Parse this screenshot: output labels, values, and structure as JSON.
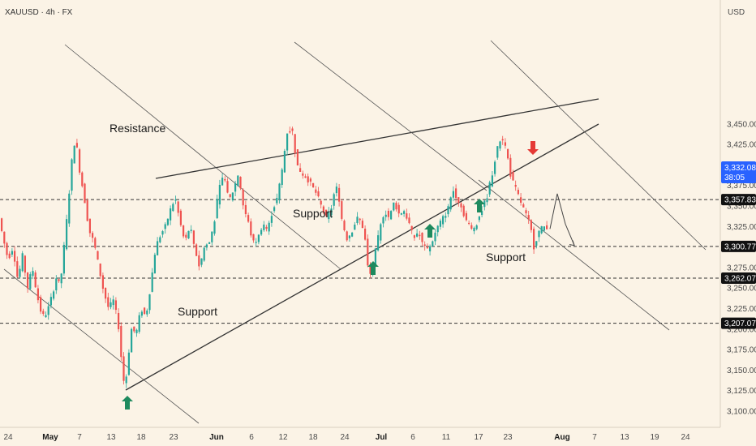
{
  "symbol_header": "XAUUSD · 4h · FX",
  "currency_label": "USD",
  "price_tag": {
    "price": "3,332.08",
    "countdown": "38:05",
    "color": "#2962ff"
  },
  "level_tags": [
    "3,357.83",
    "3,300.77",
    "3,262.07",
    "3,207.07"
  ],
  "colors": {
    "up": "#26a69a",
    "down": "#ef5350",
    "arrow_up": "#1e8a5e",
    "arrow_down": "#e53935",
    "line": "#333333"
  },
  "chart_data": {
    "type": "candlestick",
    "symbol": "XAUUSD",
    "timeframe": "4h",
    "y_axis": {
      "ticks": [
        "3,100.00",
        "3,125.00",
        "3,150.00",
        "3,175.00",
        "3,200.00",
        "3,225.00",
        "3,250.00",
        "3,275.00",
        "3,300.00",
        "3,325.00",
        "3,350.00",
        "3,375.00",
        "3,400.00",
        "3,425.00",
        "3,450.00"
      ],
      "range": [
        3088,
        3475
      ]
    },
    "x_axis": {
      "ticks": [
        {
          "label": "24",
          "bold": false
        },
        {
          "label": "May",
          "bold": true
        },
        {
          "label": "7",
          "bold": false
        },
        {
          "label": "13",
          "bold": false
        },
        {
          "label": "18",
          "bold": false
        },
        {
          "label": "23",
          "bold": false
        },
        {
          "label": "Jun",
          "bold": true
        },
        {
          "label": "6",
          "bold": false
        },
        {
          "label": "12",
          "bold": false
        },
        {
          "label": "18",
          "bold": false
        },
        {
          "label": "24",
          "bold": false
        },
        {
          "label": "Jul",
          "bold": true
        },
        {
          "label": "6",
          "bold": false
        },
        {
          "label": "11",
          "bold": false
        },
        {
          "label": "17",
          "bold": false
        },
        {
          "label": "23",
          "bold": false
        },
        {
          "label": "Aug",
          "bold": true
        },
        {
          "label": "7",
          "bold": false
        },
        {
          "label": "13",
          "bold": false
        },
        {
          "label": "19",
          "bold": false
        },
        {
          "label": "24",
          "bold": false
        }
      ]
    },
    "horizontal_levels": [
      3357.83,
      3300.77,
      3262.07,
      3207.07
    ],
    "annotations": [
      "Resistance",
      "Support",
      "Support",
      "Support"
    ],
    "price_path": [
      [
        0,
        3340
      ],
      [
        6,
        3310
      ],
      [
        12,
        3285
      ],
      [
        18,
        3300
      ],
      [
        24,
        3260
      ],
      [
        30,
        3290
      ],
      [
        36,
        3250
      ],
      [
        42,
        3275
      ],
      [
        48,
        3240
      ],
      [
        54,
        3215
      ],
      [
        60,
        3220
      ],
      [
        66,
        3240
      ],
      [
        72,
        3265
      ],
      [
        76,
        3250
      ],
      [
        80,
        3290
      ],
      [
        86,
        3350
      ],
      [
        90,
        3400
      ],
      [
        95,
        3435
      ],
      [
        100,
        3395
      ],
      [
        106,
        3360
      ],
      [
        112,
        3320
      ],
      [
        118,
        3305
      ],
      [
        124,
        3275
      ],
      [
        130,
        3245
      ],
      [
        136,
        3225
      ],
      [
        142,
        3235
      ],
      [
        148,
        3205
      ],
      [
        152,
        3160
      ],
      [
        156,
        3125
      ],
      [
        160,
        3165
      ],
      [
        164,
        3200
      ],
      [
        170,
        3195
      ],
      [
        176,
        3225
      ],
      [
        182,
        3215
      ],
      [
        188,
        3255
      ],
      [
        194,
        3300
      ],
      [
        200,
        3315
      ],
      [
        206,
        3325
      ],
      [
        212,
        3345
      ],
      [
        218,
        3360
      ],
      [
        224,
        3330
      ],
      [
        230,
        3305
      ],
      [
        236,
        3325
      ],
      [
        242,
        3300
      ],
      [
        248,
        3275
      ],
      [
        254,
        3300
      ],
      [
        260,
        3305
      ],
      [
        266,
        3330
      ],
      [
        272,
        3370
      ],
      [
        278,
        3390
      ],
      [
        284,
        3355
      ],
      [
        290,
        3370
      ],
      [
        296,
        3390
      ],
      [
        302,
        3350
      ],
      [
        308,
        3330
      ],
      [
        314,
        3305
      ],
      [
        320,
        3310
      ],
      [
        326,
        3330
      ],
      [
        332,
        3320
      ],
      [
        338,
        3345
      ],
      [
        344,
        3360
      ],
      [
        350,
        3395
      ],
      [
        356,
        3440
      ],
      [
        362,
        3445
      ],
      [
        368,
        3400
      ],
      [
        374,
        3390
      ],
      [
        380,
        3385
      ],
      [
        386,
        3375
      ],
      [
        392,
        3365
      ],
      [
        398,
        3350
      ],
      [
        404,
        3335
      ],
      [
        410,
        3345
      ],
      [
        416,
        3375
      ],
      [
        420,
        3360
      ],
      [
        424,
        3330
      ],
      [
        430,
        3310
      ],
      [
        436,
        3320
      ],
      [
        442,
        3335
      ],
      [
        448,
        3330
      ],
      [
        452,
        3310
      ],
      [
        456,
        3270
      ],
      [
        460,
        3265
      ],
      [
        464,
        3290
      ],
      [
        470,
        3320
      ],
      [
        476,
        3345
      ],
      [
        482,
        3335
      ],
      [
        488,
        3355
      ],
      [
        494,
        3340
      ],
      [
        500,
        3345
      ],
      [
        506,
        3330
      ],
      [
        512,
        3310
      ],
      [
        518,
        3320
      ],
      [
        524,
        3300
      ],
      [
        530,
        3295
      ],
      [
        536,
        3310
      ],
      [
        542,
        3325
      ],
      [
        548,
        3335
      ],
      [
        554,
        3345
      ],
      [
        560,
        3370
      ],
      [
        566,
        3360
      ],
      [
        572,
        3345
      ],
      [
        578,
        3330
      ],
      [
        584,
        3320
      ],
      [
        590,
        3330
      ],
      [
        596,
        3345
      ],
      [
        602,
        3360
      ],
      [
        608,
        3385
      ],
      [
        614,
        3415
      ],
      [
        620,
        3435
      ],
      [
        626,
        3420
      ],
      [
        632,
        3385
      ],
      [
        638,
        3370
      ],
      [
        644,
        3355
      ],
      [
        650,
        3340
      ],
      [
        656,
        3325
      ],
      [
        660,
        3300
      ],
      [
        666,
        3318
      ],
      [
        672,
        3325
      ],
      [
        678,
        3325
      ]
    ],
    "projection_path": [
      [
        678,
        3322
      ],
      [
        687,
        3365
      ],
      [
        697,
        3328
      ],
      [
        708,
        3302
      ]
    ]
  }
}
